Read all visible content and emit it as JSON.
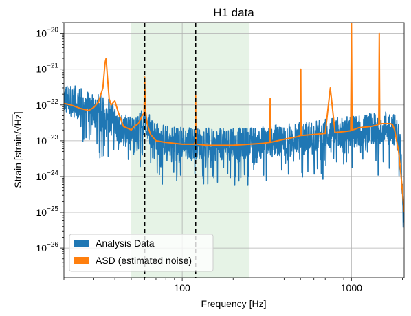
{
  "chart_data": {
    "type": "line",
    "title": "H1 data",
    "xlabel": "Frequency [Hz]",
    "ylabel_prefix": "Strain [strain/",
    "ylabel_root": "√",
    "ylabel_root_arg": "Hz",
    "ylabel_suffix": "]",
    "x_scale": "log",
    "y_scale": "log",
    "xlim": [
      20,
      2048
    ],
    "ylim": [
      1.5e-27,
      2e-20
    ],
    "x_ticks": [
      {
        "value": 100,
        "label": "100"
      },
      {
        "value": 1000,
        "label": "1000"
      }
    ],
    "y_ticks": [
      {
        "value": 1e-26,
        "base": "10",
        "exp": "−26"
      },
      {
        "value": 1e-25,
        "base": "10",
        "exp": "−25"
      },
      {
        "value": 1e-24,
        "base": "10",
        "exp": "−24"
      },
      {
        "value": 1e-23,
        "base": "10",
        "exp": "−23"
      },
      {
        "value": 1e-22,
        "base": "10",
        "exp": "−22"
      },
      {
        "value": 1e-21,
        "base": "10",
        "exp": "−21"
      },
      {
        "value": 1e-20,
        "base": "10",
        "exp": "−20"
      }
    ],
    "grid": true,
    "legend_position": "lower-left",
    "shaded_band": {
      "x": [
        50,
        250
      ],
      "color": "#e6f3e6"
    },
    "vertical_lines": [
      60,
      120
    ],
    "series": [
      {
        "name": "Analysis Data",
        "color": "#1f77b4",
        "style": "noisy",
        "envelope_x": [
          20,
          25,
          30,
          33,
          35,
          37,
          40,
          45,
          50,
          55,
          58,
          60,
          63,
          66,
          70,
          80,
          100,
          120,
          150,
          200,
          300,
          500,
          700,
          1000,
          1200,
          1400,
          1550,
          1700,
          1800,
          1900,
          1950,
          2000,
          2048
        ],
        "envelope_y": [
          1.5e-22,
          1.1e-22,
          8e-23,
          7e-23,
          5e-23,
          6e-23,
          3e-23,
          2e-23,
          1.6e-23,
          1.8e-23,
          3.5e-23,
          6e-23,
          3e-23,
          1.6e-23,
          1.2e-23,
          1e-23,
          9e-24,
          8.5e-24,
          8e-24,
          8e-24,
          9e-24,
          1.2e-23,
          1.5e-23,
          1.8e-23,
          2e-23,
          2.2e-23,
          2.5e-23,
          2.6e-23,
          2e-23,
          1.2e-23,
          5e-24,
          7e-25,
          1e-25
        ]
      },
      {
        "name": "ASD (estimated noise)",
        "color": "#ff7f0e",
        "x": [
          20,
          22,
          25,
          28,
          30,
          32,
          34,
          35,
          35.5,
          36,
          37,
          38,
          40,
          42,
          45,
          48,
          50,
          52,
          55,
          58,
          59.5,
          60,
          60.5,
          62,
          65,
          70,
          80,
          90,
          100,
          110,
          118,
          119.5,
          120,
          120.5,
          122,
          140,
          160,
          180,
          200,
          250,
          300,
          330,
          331,
          332,
          400,
          480,
          500,
          502,
          504,
          600,
          700,
          750,
          800,
          900,
          990,
          1000,
          1008,
          1050,
          1100,
          1200,
          1300,
          1400,
          1450,
          1460,
          1470,
          1500,
          1600,
          1700,
          1750,
          1800,
          1850,
          1900,
          1950,
          2000,
          2048
        ],
        "y": [
          1.1e-22,
          1e-22,
          8e-23,
          7e-23,
          8.5e-23,
          1.2e-22,
          3e-22,
          1.5e-21,
          2e-21,
          8e-22,
          1.5e-22,
          1e-22,
          1.3e-22,
          6e-23,
          2.5e-23,
          2.2e-23,
          2e-23,
          2.5e-23,
          3e-23,
          5e-23,
          6e-23,
          6e-22,
          8e-23,
          3e-23,
          1.5e-23,
          1e-23,
          9e-24,
          8.5e-24,
          8e-24,
          8e-24,
          8e-24,
          1e-23,
          1.8e-22,
          1e-23,
          8e-24,
          7.5e-24,
          7.5e-24,
          7.5e-24,
          7.5e-24,
          8e-24,
          8.5e-24,
          9e-24,
          1.5e-22,
          9e-24,
          1.1e-23,
          1.3e-23,
          1.4e-23,
          1e-21,
          1.4e-23,
          1.5e-23,
          1.6e-23,
          3e-22,
          1.7e-23,
          1.8e-23,
          1.9e-23,
          2e-20,
          2e-23,
          2.1e-23,
          2.3e-23,
          2.4e-23,
          2.5e-23,
          2.7e-23,
          2.9e-23,
          1e-20,
          2.9e-23,
          3e-23,
          3e-23,
          3e-23,
          2.8e-23,
          2e-23,
          1e-23,
          5e-24,
          1.5e-24,
          4e-25,
          1e-25
        ]
      }
    ]
  }
}
